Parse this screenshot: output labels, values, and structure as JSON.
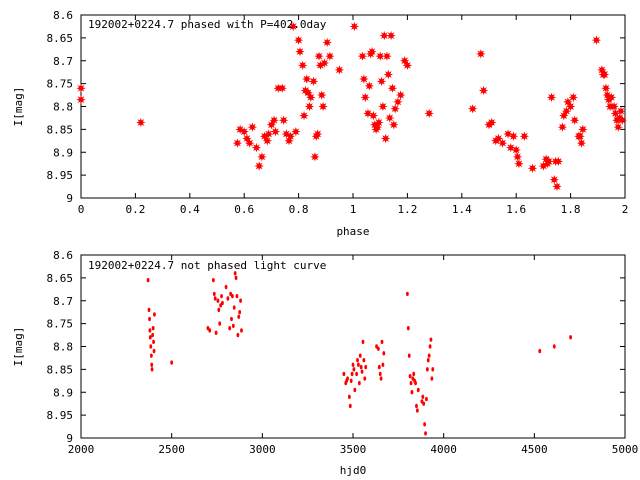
{
  "chart_data": [
    {
      "type": "scatter",
      "title": "192002+0224.7 phased with P=402.0day",
      "xlabel": "phase",
      "ylabel": "I[mag]",
      "xlim": [
        0,
        2
      ],
      "ylim": [
        9,
        8.6
      ],
      "y_inverted": true,
      "xticks": [
        "0",
        "0.2",
        "0.4",
        "0.6",
        "0.8",
        "1",
        "1.2",
        "1.4",
        "1.6",
        "1.8",
        "2"
      ],
      "yticks": [
        "8.6",
        "8.65",
        "8.7",
        "8.75",
        "8.8",
        "8.85",
        "8.9",
        "8.95",
        "9"
      ],
      "grid": false,
      "marker": "star",
      "color": "#ff0000",
      "points": [
        [
          0.0,
          8.76
        ],
        [
          0.0,
          8.785
        ],
        [
          0.22,
          8.835
        ],
        [
          0.575,
          8.88
        ],
        [
          0.585,
          8.85
        ],
        [
          0.6,
          8.855
        ],
        [
          0.61,
          8.87
        ],
        [
          0.62,
          8.88
        ],
        [
          0.63,
          8.845
        ],
        [
          0.645,
          8.89
        ],
        [
          0.655,
          8.93
        ],
        [
          0.665,
          8.91
        ],
        [
          0.675,
          8.865
        ],
        [
          0.685,
          8.875
        ],
        [
          0.69,
          8.86
        ],
        [
          0.7,
          8.84
        ],
        [
          0.71,
          8.83
        ],
        [
          0.715,
          8.855
        ],
        [
          0.725,
          8.76
        ],
        [
          0.74,
          8.76
        ],
        [
          0.745,
          8.83
        ],
        [
          0.755,
          8.86
        ],
        [
          0.765,
          8.875
        ],
        [
          0.77,
          8.865
        ],
        [
          0.78,
          8.625
        ],
        [
          0.79,
          8.855
        ],
        [
          0.8,
          8.655
        ],
        [
          0.805,
          8.68
        ],
        [
          0.815,
          8.71
        ],
        [
          0.82,
          8.82
        ],
        [
          0.825,
          8.765
        ],
        [
          0.83,
          8.74
        ],
        [
          0.835,
          8.77
        ],
        [
          0.84,
          8.8
        ],
        [
          0.845,
          8.78
        ],
        [
          0.855,
          8.745
        ],
        [
          0.86,
          8.91
        ],
        [
          0.865,
          8.865
        ],
        [
          0.87,
          8.86
        ],
        [
          0.875,
          8.69
        ],
        [
          0.88,
          8.71
        ],
        [
          0.885,
          8.775
        ],
        [
          0.89,
          8.8
        ],
        [
          0.895,
          8.705
        ],
        [
          0.905,
          8.66
        ],
        [
          0.915,
          8.69
        ],
        [
          0.95,
          8.72
        ],
        [
          1.005,
          8.625
        ],
        [
          1.035,
          8.69
        ],
        [
          1.04,
          8.74
        ],
        [
          1.045,
          8.78
        ],
        [
          1.055,
          8.815
        ],
        [
          1.06,
          8.755
        ],
        [
          1.065,
          8.685
        ],
        [
          1.07,
          8.68
        ],
        [
          1.075,
          8.82
        ],
        [
          1.08,
          8.84
        ],
        [
          1.085,
          8.85
        ],
        [
          1.09,
          8.845
        ],
        [
          1.095,
          8.835
        ],
        [
          1.1,
          8.69
        ],
        [
          1.105,
          8.745
        ],
        [
          1.11,
          8.8
        ],
        [
          1.115,
          8.645
        ],
        [
          1.12,
          8.87
        ],
        [
          1.125,
          8.69
        ],
        [
          1.13,
          8.73
        ],
        [
          1.135,
          8.825
        ],
        [
          1.14,
          8.645
        ],
        [
          1.145,
          8.76
        ],
        [
          1.15,
          8.84
        ],
        [
          1.155,
          8.805
        ],
        [
          1.165,
          8.79
        ],
        [
          1.175,
          8.775
        ],
        [
          1.19,
          8.7
        ],
        [
          1.2,
          8.71
        ],
        [
          1.28,
          8.815
        ],
        [
          1.44,
          8.805
        ],
        [
          1.47,
          8.685
        ],
        [
          1.48,
          8.765
        ],
        [
          1.5,
          8.84
        ],
        [
          1.51,
          8.835
        ],
        [
          1.525,
          8.875
        ],
        [
          1.535,
          8.87
        ],
        [
          1.55,
          8.88
        ],
        [
          1.57,
          8.86
        ],
        [
          1.58,
          8.89
        ],
        [
          1.59,
          8.865
        ],
        [
          1.6,
          8.895
        ],
        [
          1.605,
          8.91
        ],
        [
          1.61,
          8.925
        ],
        [
          1.63,
          8.865
        ],
        [
          1.66,
          8.935
        ],
        [
          1.7,
          8.93
        ],
        [
          1.71,
          8.915
        ],
        [
          1.715,
          8.925
        ],
        [
          1.72,
          8.92
        ],
        [
          1.73,
          8.78
        ],
        [
          1.74,
          8.96
        ],
        [
          1.745,
          8.92
        ],
        [
          1.75,
          8.975
        ],
        [
          1.755,
          8.92
        ],
        [
          1.77,
          8.845
        ],
        [
          1.775,
          8.82
        ],
        [
          1.785,
          8.81
        ],
        [
          1.79,
          8.79
        ],
        [
          1.8,
          8.8
        ],
        [
          1.81,
          8.78
        ],
        [
          1.815,
          8.83
        ],
        [
          1.83,
          8.865
        ],
        [
          1.835,
          8.865
        ],
        [
          1.84,
          8.88
        ],
        [
          1.845,
          8.85
        ],
        [
          1.895,
          8.655
        ],
        [
          1.915,
          8.72
        ],
        [
          1.92,
          8.73
        ],
        [
          1.925,
          8.73
        ],
        [
          1.93,
          8.76
        ],
        [
          1.935,
          8.775
        ],
        [
          1.94,
          8.785
        ],
        [
          1.945,
          8.8
        ],
        [
          1.95,
          8.78
        ],
        [
          1.96,
          8.8
        ],
        [
          1.965,
          8.815
        ],
        [
          1.97,
          8.83
        ],
        [
          1.975,
          8.845
        ],
        [
          1.98,
          8.825
        ],
        [
          1.985,
          8.81
        ],
        [
          1.99,
          8.83
        ]
      ]
    },
    {
      "type": "scatter",
      "title": "192002+0224.7 not phased light curve",
      "xlabel": "hjd0",
      "ylabel": "I[mag]",
      "xlim": [
        2000,
        5000
      ],
      "ylim": [
        9,
        8.6
      ],
      "y_inverted": true,
      "xticks": [
        "2000",
        "2500",
        "3000",
        "3500",
        "4000",
        "4500",
        "5000"
      ],
      "yticks": [
        "8.6",
        "8.65",
        "8.7",
        "8.75",
        "8.8",
        "8.85",
        "8.9",
        "8.95",
        "9"
      ],
      "grid": false,
      "marker": "dot",
      "color": "#ff0000",
      "points": [
        [
          2370,
          8.655
        ],
        [
          2375,
          8.72
        ],
        [
          2378,
          8.74
        ],
        [
          2380,
          8.765
        ],
        [
          2382,
          8.78
        ],
        [
          2385,
          8.8
        ],
        [
          2388,
          8.82
        ],
        [
          2390,
          8.84
        ],
        [
          2392,
          8.85
        ],
        [
          2395,
          8.775
        ],
        [
          2398,
          8.76
        ],
        [
          2400,
          8.79
        ],
        [
          2403,
          8.81
        ],
        [
          2405,
          8.73
        ],
        [
          2500,
          8.835
        ],
        [
          2700,
          8.76
        ],
        [
          2710,
          8.765
        ],
        [
          2730,
          8.655
        ],
        [
          2735,
          8.685
        ],
        [
          2740,
          8.695
        ],
        [
          2745,
          8.77
        ],
        [
          2755,
          8.7
        ],
        [
          2760,
          8.72
        ],
        [
          2765,
          8.75
        ],
        [
          2770,
          8.71
        ],
        [
          2775,
          8.69
        ],
        [
          2780,
          8.705
        ],
        [
          2800,
          8.67
        ],
        [
          2810,
          8.695
        ],
        [
          2820,
          8.76
        ],
        [
          2825,
          8.685
        ],
        [
          2830,
          8.74
        ],
        [
          2835,
          8.69
        ],
        [
          2840,
          8.755
        ],
        [
          2845,
          8.715
        ],
        [
          2850,
          8.64
        ],
        [
          2855,
          8.65
        ],
        [
          2860,
          8.69
        ],
        [
          2865,
          8.775
        ],
        [
          2870,
          8.735
        ],
        [
          2875,
          8.725
        ],
        [
          2880,
          8.7
        ],
        [
          2885,
          8.765
        ],
        [
          3450,
          8.86
        ],
        [
          3460,
          8.88
        ],
        [
          3465,
          8.875
        ],
        [
          3470,
          8.87
        ],
        [
          3480,
          8.91
        ],
        [
          3485,
          8.93
        ],
        [
          3490,
          8.875
        ],
        [
          3495,
          8.86
        ],
        [
          3500,
          8.84
        ],
        [
          3505,
          8.85
        ],
        [
          3510,
          8.895
        ],
        [
          3520,
          8.86
        ],
        [
          3525,
          8.83
        ],
        [
          3530,
          8.84
        ],
        [
          3535,
          8.88
        ],
        [
          3540,
          8.82
        ],
        [
          3545,
          8.845
        ],
        [
          3550,
          8.855
        ],
        [
          3555,
          8.79
        ],
        [
          3560,
          8.83
        ],
        [
          3565,
          8.87
        ],
        [
          3570,
          8.845
        ],
        [
          3630,
          8.8
        ],
        [
          3640,
          8.805
        ],
        [
          3645,
          8.845
        ],
        [
          3650,
          8.86
        ],
        [
          3655,
          8.87
        ],
        [
          3660,
          8.79
        ],
        [
          3665,
          8.84
        ],
        [
          3670,
          8.815
        ],
        [
          3800,
          8.685
        ],
        [
          3805,
          8.76
        ],
        [
          3810,
          8.82
        ],
        [
          3815,
          8.865
        ],
        [
          3820,
          8.88
        ],
        [
          3825,
          8.9
        ],
        [
          3830,
          8.87
        ],
        [
          3835,
          8.86
        ],
        [
          3840,
          8.875
        ],
        [
          3845,
          8.88
        ],
        [
          3850,
          8.93
        ],
        [
          3855,
          8.94
        ],
        [
          3860,
          8.895
        ],
        [
          3880,
          8.92
        ],
        [
          3885,
          8.91
        ],
        [
          3890,
          8.925
        ],
        [
          3895,
          8.97
        ],
        [
          3900,
          8.99
        ],
        [
          3905,
          8.915
        ],
        [
          3910,
          8.85
        ],
        [
          3915,
          8.83
        ],
        [
          3920,
          8.82
        ],
        [
          3925,
          8.8
        ],
        [
          3930,
          8.785
        ],
        [
          3935,
          8.87
        ],
        [
          3940,
          8.85
        ],
        [
          4530,
          8.81
        ],
        [
          4610,
          8.8
        ],
        [
          4700,
          8.78
        ]
      ]
    }
  ]
}
